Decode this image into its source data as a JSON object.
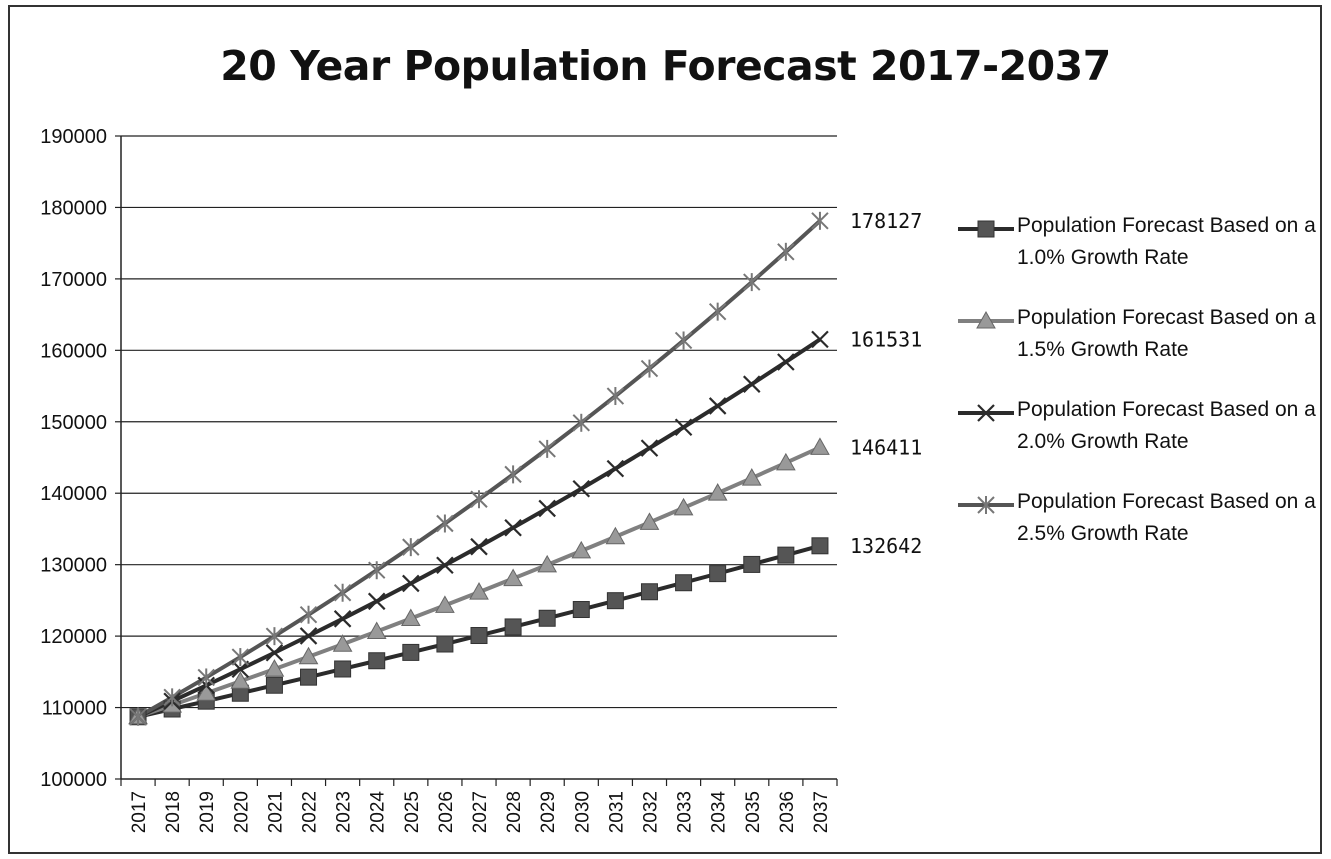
{
  "chart_data": {
    "type": "line",
    "title": "20 Year Population Forecast 2017-2037",
    "xlabel": "",
    "ylabel": "",
    "ylim": [
      100000,
      190000
    ],
    "yticks": [
      100000,
      110000,
      120000,
      130000,
      140000,
      150000,
      160000,
      170000,
      180000,
      190000
    ],
    "grid": "horizontal",
    "legend_position": "right",
    "categories": [
      "2017",
      "2018",
      "2019",
      "2020",
      "2021",
      "2022",
      "2023",
      "2024",
      "2025",
      "2026",
      "2027",
      "2028",
      "2029",
      "2030",
      "2031",
      "2032",
      "2033",
      "2034",
      "2035",
      "2036",
      "2037"
    ],
    "series": [
      {
        "name": "Population Forecast Based on a 1.0% Growth Rate",
        "marker": "square",
        "color": "#2b2b2b",
        "marker_color": "#555555",
        "end_label": "132642",
        "values": [
          108710,
          109797,
          110895,
          112004,
          113124,
          114255,
          115398,
          116552,
          117718,
          118895,
          120084,
          121285,
          122498,
          123723,
          124960,
          126210,
          127472,
          128746,
          130034,
          131334,
          132642
        ]
      },
      {
        "name": "Population Forecast Based on a 1.5% Growth Rate",
        "marker": "triangle",
        "color": "#808080",
        "marker_color": "#999999",
        "end_label": "146411",
        "values": [
          108710,
          110341,
          111996,
          113676,
          115381,
          117112,
          118868,
          120651,
          122461,
          124298,
          126163,
          128055,
          129976,
          131925,
          133904,
          135913,
          137952,
          140021,
          142121,
          144253,
          146411
        ]
      },
      {
        "name": "Population Forecast Based on a 2.0% Growth Rate",
        "marker": "x",
        "color": "#2b2b2b",
        "marker_color": "#2b2b2b",
        "end_label": "161531",
        "values": [
          108710,
          110884,
          113102,
          115364,
          117671,
          120025,
          122425,
          124874,
          127371,
          129919,
          132517,
          135168,
          137871,
          140629,
          143441,
          146310,
          149236,
          152221,
          155265,
          158371,
          161531
        ]
      },
      {
        "name": "Population Forecast Based on a 2.5% Growth Rate",
        "marker": "star",
        "color": "#555555",
        "marker_color": "#777777",
        "end_label": "178127",
        "values": [
          108710,
          111428,
          114213,
          117069,
          119995,
          122995,
          126070,
          129222,
          132453,
          135764,
          139158,
          142637,
          146203,
          149858,
          153605,
          157445,
          161381,
          165415,
          169551,
          173789,
          178127
        ]
      }
    ]
  }
}
